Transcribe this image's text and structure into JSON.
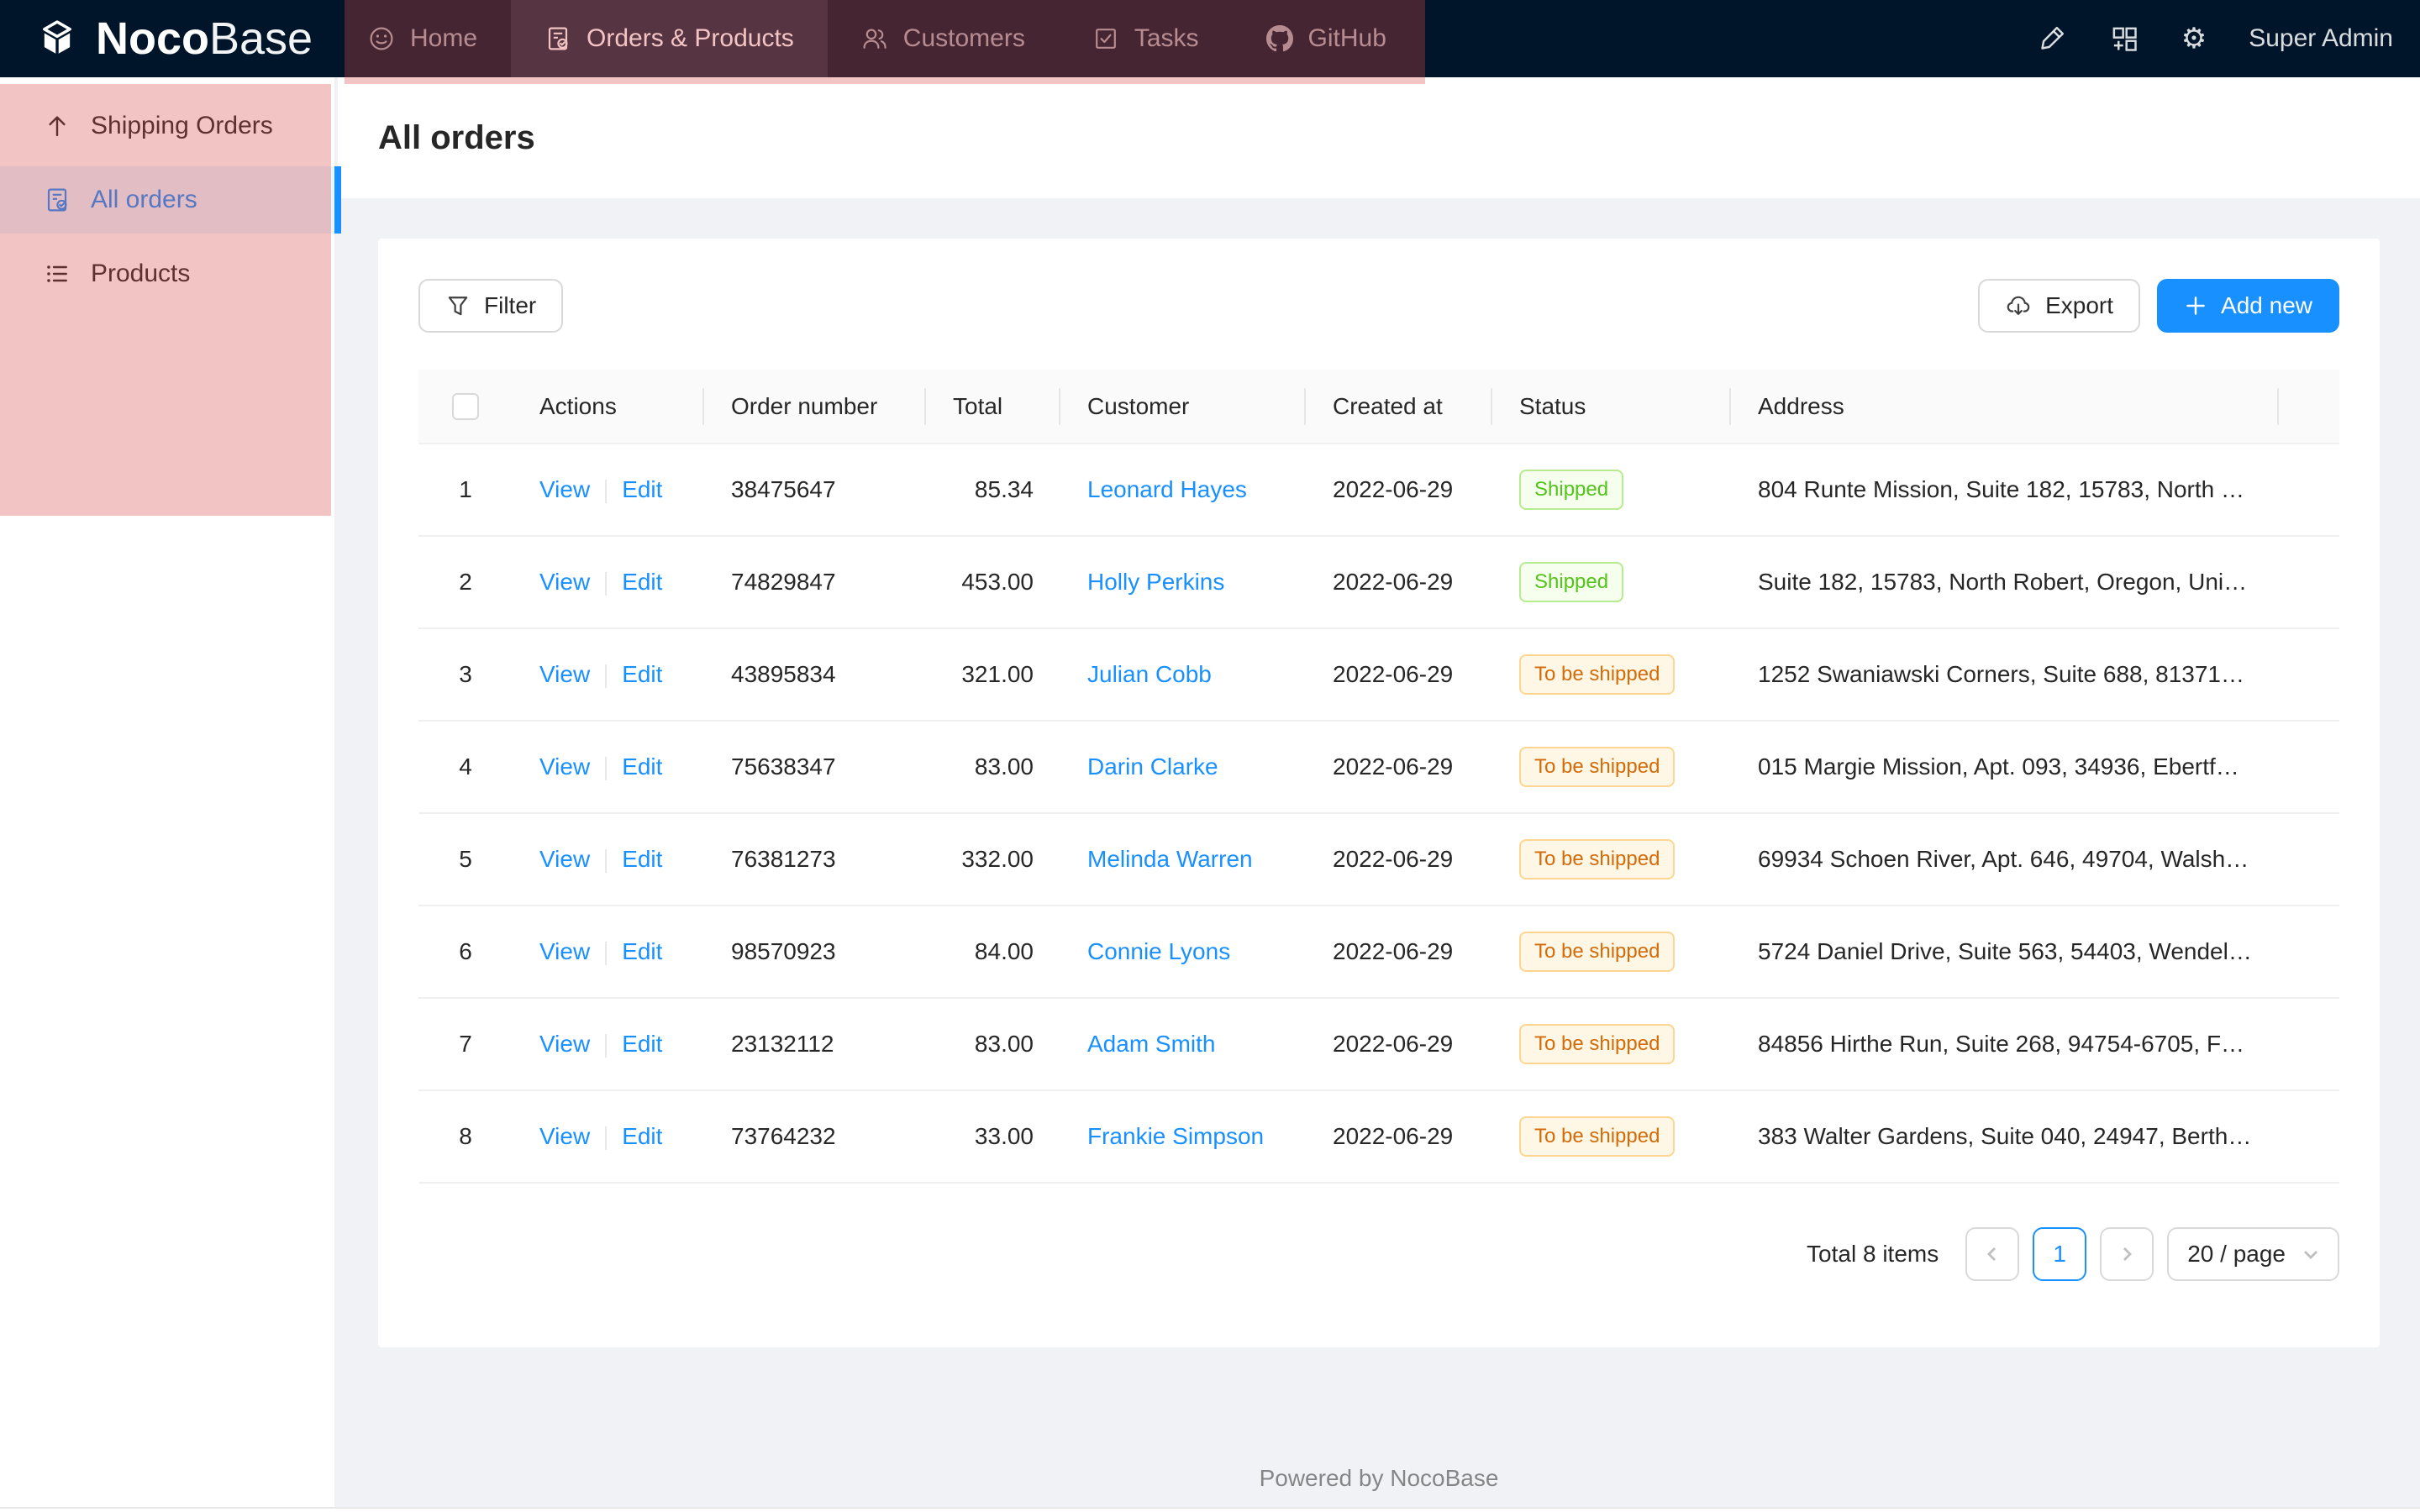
{
  "colors": {
    "navbar_bg": "#001529",
    "primary": "#1890ff",
    "content_bg": "#f0f2f5",
    "annotation": "rgba(217,72,70,0.32)",
    "status": {
      "Shipped": {
        "text": "#52c41a",
        "bg": "#f6ffed",
        "border": "#b7eb8f"
      },
      "To be shipped": {
        "text": "#d46b08",
        "bg": "#fff7e6",
        "border": "#ffd591"
      }
    }
  },
  "topbar": {
    "logo_bold": "Noco",
    "logo_light": "Base",
    "nav_items": [
      {
        "label": "Home",
        "icon": "smiley-icon",
        "active": false
      },
      {
        "label": "Orders & Products",
        "icon": "file-done-icon",
        "active": true
      },
      {
        "label": "Customers",
        "icon": "team-icon",
        "active": false
      },
      {
        "label": "Tasks",
        "icon": "check-square-icon",
        "active": false
      },
      {
        "label": "GitHub",
        "icon": "github-icon",
        "active": false
      }
    ],
    "right_icons": [
      "highlighter-icon",
      "blocks-add-icon",
      "gear-icon"
    ],
    "user": "Super Admin"
  },
  "sidebar": {
    "items": [
      {
        "label": "Shipping Orders",
        "icon": "arrow-up-icon",
        "active": false
      },
      {
        "label": "All orders",
        "icon": "file-done-icon",
        "active": true
      },
      {
        "label": "Products",
        "icon": "list-icon",
        "active": false
      }
    ]
  },
  "page": {
    "title": "All orders"
  },
  "toolbar": {
    "filter": "Filter",
    "export": "Export",
    "add_new": "Add new"
  },
  "table": {
    "columns": [
      "Actions",
      "Order number",
      "Total",
      "Customer",
      "Created at",
      "Status",
      "Address"
    ],
    "action_labels": {
      "view": "View",
      "edit": "Edit"
    },
    "rows": [
      {
        "index": 1,
        "order_number": "38475647",
        "total": "85.34",
        "customer": "Leonard Hayes",
        "created_at": "2022-06-29",
        "status": "Shipped",
        "address": "804 Runte Mission, Suite 182, 15783, North R..."
      },
      {
        "index": 2,
        "order_number": "74829847",
        "total": "453.00",
        "customer": "Holly Perkins",
        "created_at": "2022-06-29",
        "status": "Shipped",
        "address": "Suite 182, 15783, North Robert, Oregon, Unite..."
      },
      {
        "index": 3,
        "order_number": "43895834",
        "total": "321.00",
        "customer": "Julian Cobb",
        "created_at": "2022-06-29",
        "status": "To be shipped",
        "address": "1252 Swaniawski Corners, Suite 688, 81371-8..."
      },
      {
        "index": 4,
        "order_number": "75638347",
        "total": "83.00",
        "customer": "Darin Clarke",
        "created_at": "2022-06-29",
        "status": "To be shipped",
        "address": "015 Margie Mission, Apt. 093, 34936, Ebertfor..."
      },
      {
        "index": 5,
        "order_number": "76381273",
        "total": "332.00",
        "customer": "Melinda Warren",
        "created_at": "2022-06-29",
        "status": "To be shipped",
        "address": "69934 Schoen River, Apt. 646, 49704, Walshst..."
      },
      {
        "index": 6,
        "order_number": "98570923",
        "total": "84.00",
        "customer": "Connie Lyons",
        "created_at": "2022-06-29",
        "status": "To be shipped",
        "address": "5724 Daniel Drive, Suite 563, 54403, Wendellv..."
      },
      {
        "index": 7,
        "order_number": "23132112",
        "total": "83.00",
        "customer": "Adam Smith",
        "created_at": "2022-06-29",
        "status": "To be shipped",
        "address": "84856 Hirthe Run, Suite 268, 94754-6705, Ferr..."
      },
      {
        "index": 8,
        "order_number": "73764232",
        "total": "33.00",
        "customer": "Frankie Simpson",
        "created_at": "2022-06-29",
        "status": "To be shipped",
        "address": "383 Walter Gardens, Suite 040, 24947, Berthas..."
      }
    ]
  },
  "pagination": {
    "total_text": "Total 8 items",
    "current_page": "1",
    "page_size": "20 / page"
  },
  "footer": {
    "text": "Powered by NocoBase"
  }
}
